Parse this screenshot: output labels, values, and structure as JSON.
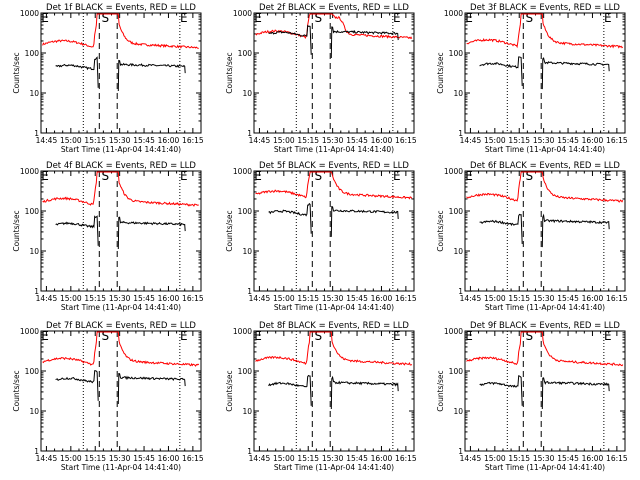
{
  "chart_data": {
    "type": "line",
    "panels": [
      {
        "title": "Det 1f BLACK = Events, RED = LLD",
        "x_ticks": [
          "14:45",
          "15:00",
          "15:15",
          "15:30",
          "15:45",
          "16:00",
          "16:15"
        ],
        "xlabel": "Start Time (11-Apr-04 14:41:40)",
        "ylabel": "Counts/sec",
        "y_ticks": [
          "1",
          "10",
          "100",
          "1000"
        ],
        "ylim": [
          1,
          1000
        ],
        "markers": [
          "E",
          "S",
          "E"
        ],
        "red_base": 165,
        "black_base": 45,
        "red_peak_extra": 0
      },
      {
        "title": "Det 2f BLACK = Events, RED = LLD",
        "x_ticks": [
          "14:45",
          "15:00",
          "15:15",
          "15:30",
          "15:45",
          "16:00",
          "16:15"
        ],
        "xlabel": "Start Time (11-Apr-04 14:41:40)",
        "ylabel": "Counts/sec",
        "y_ticks": [
          "1",
          "10",
          "100",
          "1000"
        ],
        "ylim": [
          1,
          1000
        ],
        "markers": [
          "E",
          "S",
          "E"
        ],
        "red_base": 290,
        "black_base": 300,
        "red_peak_extra": 1
      },
      {
        "title": "Det 3f BLACK = Events, RED = LLD",
        "x_ticks": [
          "14:45",
          "15:00",
          "15:15",
          "15:30",
          "15:45",
          "16:00",
          "16:15"
        ],
        "xlabel": "Start Time (11-Apr-04 14:41:40)",
        "ylabel": "Counts/sec",
        "y_ticks": [
          "1",
          "10",
          "100",
          "1000"
        ],
        "ylim": [
          1,
          1000
        ],
        "markers": [
          "E",
          "S",
          "E"
        ],
        "red_base": 175,
        "black_base": 50,
        "red_peak_extra": 0
      },
      {
        "title": "Det 4f BLACK = Events, RED = LLD",
        "x_ticks": [
          "14:45",
          "15:00",
          "15:15",
          "15:30",
          "15:45",
          "16:00",
          "16:15"
        ],
        "xlabel": "Start Time (11-Apr-04 14:41:40)",
        "ylabel": "Counts/sec",
        "y_ticks": [
          "1",
          "10",
          "100",
          "1000"
        ],
        "ylim": [
          1,
          1000
        ],
        "markers": [
          "E",
          "S",
          "E"
        ],
        "red_base": 170,
        "black_base": 45,
        "red_peak_extra": 0
      },
      {
        "title": "Det 5f BLACK = Events, RED = LLD",
        "x_ticks": [
          "14:45",
          "15:00",
          "15:15",
          "15:30",
          "15:45",
          "16:00",
          "16:15"
        ],
        "xlabel": "Start Time (11-Apr-04 14:41:40)",
        "ylabel": "Counts/sec",
        "y_ticks": [
          "1",
          "10",
          "100",
          "1000"
        ],
        "ylim": [
          1,
          1000
        ],
        "markers": [
          "E",
          "S",
          "E"
        ],
        "red_base": 260,
        "black_base": 90,
        "red_peak_extra": 0
      },
      {
        "title": "Det 6f BLACK = Events, RED = LLD",
        "x_ticks": [
          "14:45",
          "15:00",
          "15:15",
          "15:30",
          "15:45",
          "16:00",
          "16:15"
        ],
        "xlabel": "Start Time (11-Apr-04 14:41:40)",
        "ylabel": "Counts/sec",
        "y_ticks": [
          "1",
          "10",
          "100",
          "1000"
        ],
        "ylim": [
          1,
          1000
        ],
        "markers": [
          "E",
          "S",
          "E"
        ],
        "red_base": 215,
        "black_base": 50,
        "red_peak_extra": 0
      },
      {
        "title": "Det 7f BLACK = Events, RED = LLD",
        "x_ticks": [
          "14:45",
          "15:00",
          "15:15",
          "15:30",
          "15:45",
          "16:00",
          "16:15"
        ],
        "xlabel": "Start Time (11-Apr-04 14:41:40)",
        "ylabel": "Counts/sec",
        "y_ticks": [
          "1",
          "10",
          "100",
          "1000"
        ],
        "ylim": [
          1,
          1000
        ],
        "markers": [
          "E",
          "S",
          "E"
        ],
        "red_base": 170,
        "black_base": 60,
        "red_peak_extra": 0
      },
      {
        "title": "Det 8f BLACK = Events, RED = LLD",
        "x_ticks": [
          "14:45",
          "15:00",
          "15:15",
          "15:30",
          "15:45",
          "16:00",
          "16:15"
        ],
        "xlabel": "Start Time (11-Apr-04 14:41:40)",
        "ylabel": "Counts/sec",
        "y_ticks": [
          "1",
          "10",
          "100",
          "1000"
        ],
        "ylim": [
          1,
          1000
        ],
        "markers": [
          "E",
          "S",
          "E"
        ],
        "red_base": 180,
        "black_base": 45,
        "red_peak_extra": 0
      },
      {
        "title": "Det 9f BLACK = Events, RED = LLD",
        "x_ticks": [
          "14:45",
          "15:00",
          "15:15",
          "15:30",
          "15:45",
          "16:00",
          "16:15"
        ],
        "xlabel": "Start Time (11-Apr-04 14:41:40)",
        "ylabel": "Counts/sec",
        "y_ticks": [
          "1",
          "10",
          "100",
          "1000"
        ],
        "ylim": [
          1,
          1000
        ],
        "markers": [
          "E",
          "S",
          "E"
        ],
        "red_base": 175,
        "black_base": 45,
        "red_peak_extra": 0
      }
    ],
    "series": [
      {
        "name": "Events",
        "color": "#000000"
      },
      {
        "name": "LLD",
        "color": "#ff0000"
      }
    ],
    "x_range": [
      "14:41:40",
      "16:20"
    ],
    "attenuator_gap": [
      "15:18",
      "15:28"
    ],
    "y_scale": "log",
    "grid": false
  }
}
